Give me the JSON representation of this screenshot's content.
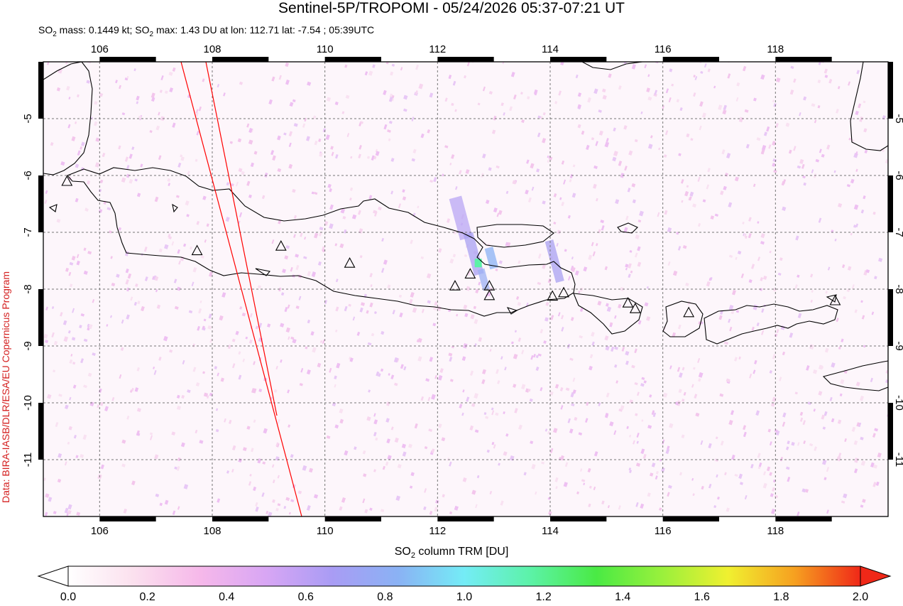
{
  "title": "Sentinel-5P/TROPOMI - 05/24/2026 05:37-07:21 UT",
  "subtitle": {
    "so2_mass_label": "SO",
    "so2_mass_value": " mass: 0.1449 kt; SO",
    "so2_max_text": " max: 1.43 DU at lon: 112.71 lat: -7.54 ; 05:39UTC",
    "sub2": "2"
  },
  "credit": "Data: BIRA-IASB/DLR/ESA/EU Copernicus Program",
  "map": {
    "lon_range": [
      105,
      120
    ],
    "lat_range": [
      -12,
      -4
    ],
    "lon_ticks": [
      "106",
      "108",
      "110",
      "112",
      "114",
      "116",
      "118"
    ],
    "lat_ticks": [
      "-5",
      "-6",
      "-7",
      "-8",
      "-9",
      "-10",
      "-11"
    ],
    "grid": "dashed",
    "volcano_icon": "triangle-icon",
    "volcanoes": [
      {
        "lon": 105.42,
        "lat": -6.1
      },
      {
        "lon": 107.73,
        "lat": -7.32
      },
      {
        "lon": 109.22,
        "lat": -7.24
      },
      {
        "lon": 110.44,
        "lat": -7.54
      },
      {
        "lon": 112.31,
        "lat": -7.94
      },
      {
        "lon": 112.58,
        "lat": -7.73
      },
      {
        "lon": 112.92,
        "lat": -7.94
      },
      {
        "lon": 112.92,
        "lat": -8.11
      },
      {
        "lon": 114.04,
        "lat": -8.12
      },
      {
        "lon": 114.24,
        "lat": -8.06
      },
      {
        "lon": 115.38,
        "lat": -8.24
      },
      {
        "lon": 115.51,
        "lat": -8.34
      },
      {
        "lon": 116.46,
        "lat": -8.41
      },
      {
        "lon": 119.06,
        "lat": -8.2
      }
    ],
    "so2_max_point": {
      "lon": 112.71,
      "lat": -7.54,
      "value_du": 1.43
    }
  },
  "colorbar": {
    "label_main": "SO",
    "label_sub": "2",
    "label_rest": " column TRM [DU]",
    "ticks": [
      "0.0",
      "0.2",
      "0.4",
      "0.6",
      "0.8",
      "1.0",
      "1.2",
      "1.4",
      "1.6",
      "1.8",
      "2.0"
    ],
    "colors": [
      "#ffffff",
      "#fbe0ee",
      "#f6b8ea",
      "#d8a6f4",
      "#a99cf4",
      "#8ab2f4",
      "#74ecf6",
      "#5cf2a8",
      "#4aea44",
      "#9af03c",
      "#f0f030",
      "#f6a020",
      "#f02818"
    ],
    "under_color": "#ffffff",
    "over_color": "#f02818"
  }
}
